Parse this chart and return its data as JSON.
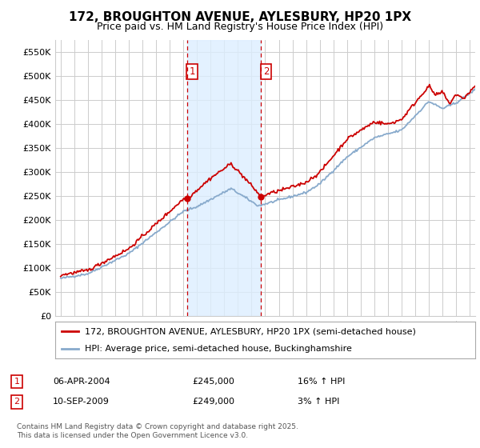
{
  "title_line1": "172, BROUGHTON AVENUE, AYLESBURY, HP20 1PX",
  "title_line2": "Price paid vs. HM Land Registry's House Price Index (HPI)",
  "legend_line1": "172, BROUGHTON AVENUE, AYLESBURY, HP20 1PX (semi-detached house)",
  "legend_line2": "HPI: Average price, semi-detached house, Buckinghamshire",
  "ann1_label": "1",
  "ann1_date": "06-APR-2004",
  "ann1_price": "£245,000",
  "ann1_hpi": "16% ↑ HPI",
  "ann2_label": "2",
  "ann2_date": "10-SEP-2009",
  "ann2_price": "£249,000",
  "ann2_hpi": "3% ↑ HPI",
  "footer": "Contains HM Land Registry data © Crown copyright and database right 2025.\nThis data is licensed under the Open Government Licence v3.0.",
  "y_ticks": [
    0,
    50000,
    100000,
    150000,
    200000,
    250000,
    300000,
    350000,
    400000,
    450000,
    500000,
    550000
  ],
  "y_tick_labels": [
    "£0",
    "£50K",
    "£100K",
    "£150K",
    "£200K",
    "£250K",
    "£300K",
    "£350K",
    "£400K",
    "£450K",
    "£500K",
    "£550K"
  ],
  "ylim": [
    0,
    575000
  ],
  "xlim_start": 1994.6,
  "xlim_end": 2025.4,
  "sale1_x": 2004.27,
  "sale1_y": 245000,
  "sale2_x": 2009.69,
  "sale2_y": 249000,
  "red_color": "#cc0000",
  "blue_color": "#88aacc",
  "shade_color": "#ddeeff",
  "vline_color": "#cc0000",
  "grid_color": "#cccccc",
  "bg_color": "#ffffff",
  "title_fontsize": 11,
  "subtitle_fontsize": 9,
  "axis_fontsize": 8,
  "legend_fontsize": 8,
  "ann_fontsize": 8,
  "footer_fontsize": 6.5
}
